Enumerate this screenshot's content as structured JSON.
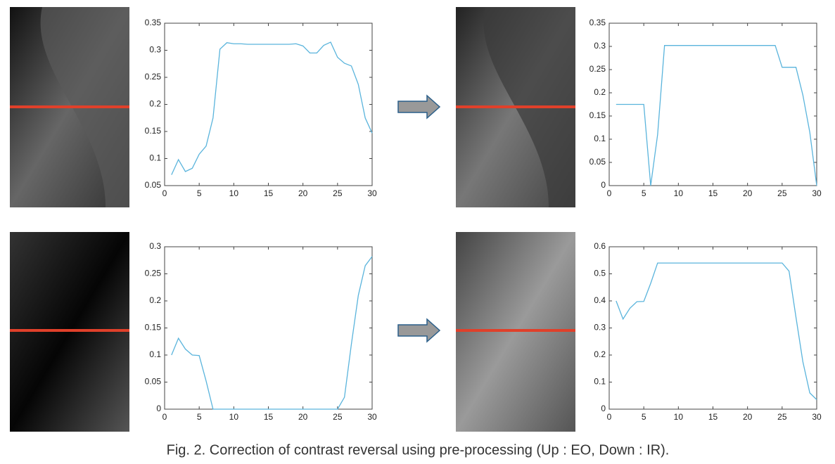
{
  "chart_data": [
    {
      "type": "line",
      "x": [
        1,
        2,
        3,
        4,
        5,
        6,
        7,
        8,
        9,
        10,
        11,
        12,
        13,
        14,
        15,
        16,
        17,
        18,
        19,
        20,
        21,
        22,
        23,
        24,
        25,
        26,
        27,
        28,
        29,
        30
      ],
      "values": [
        0.07,
        0.098,
        0.076,
        0.082,
        0.108,
        0.123,
        0.175,
        0.302,
        0.314,
        0.312,
        0.312,
        0.311,
        0.311,
        0.311,
        0.311,
        0.311,
        0.311,
        0.311,
        0.312,
        0.308,
        0.295,
        0.295,
        0.309,
        0.315,
        0.287,
        0.276,
        0.271,
        0.237,
        0.175,
        0.147
      ],
      "color": "#5ab4dc",
      "xlim": [
        0,
        30
      ],
      "xticks": [
        0,
        5,
        10,
        15,
        20,
        25,
        30
      ],
      "ylim": [
        0.05,
        0.35
      ],
      "yticks": [
        0.05,
        0.1,
        0.15,
        0.2,
        0.25,
        0.3,
        0.35
      ]
    },
    {
      "type": "line",
      "x": [
        1,
        2,
        3,
        4,
        5,
        6,
        7,
        8,
        9,
        10,
        11,
        12,
        13,
        14,
        15,
        16,
        17,
        18,
        19,
        20,
        21,
        22,
        23,
        24,
        25,
        26,
        27,
        28,
        29,
        30
      ],
      "values": [
        0.175,
        0.175,
        0.175,
        0.175,
        0.175,
        0,
        0.11,
        0.302,
        0.302,
        0.302,
        0.302,
        0.302,
        0.302,
        0.302,
        0.302,
        0.302,
        0.302,
        0.302,
        0.302,
        0.302,
        0.302,
        0.302,
        0.302,
        0.302,
        0.255,
        0.255,
        0.255,
        0.195,
        0.115,
        0
      ],
      "color": "#5ab4dc",
      "xlim": [
        0,
        30
      ],
      "xticks": [
        0,
        5,
        10,
        15,
        20,
        25,
        30
      ],
      "ylim": [
        0,
        0.35
      ],
      "yticks": [
        0,
        0.05,
        0.1,
        0.15,
        0.2,
        0.25,
        0.3,
        0.35
      ]
    },
    {
      "type": "line",
      "x": [
        1,
        2,
        3,
        4,
        5,
        6,
        7,
        8,
        9,
        10,
        11,
        12,
        13,
        14,
        15,
        16,
        17,
        18,
        19,
        20,
        21,
        22,
        23,
        24,
        25,
        26,
        27,
        28,
        29,
        30
      ],
      "values": [
        0.1,
        0.131,
        0.111,
        0.1,
        0.099,
        0.052,
        0,
        0,
        0,
        0,
        0,
        0,
        0,
        0,
        0,
        0,
        0,
        0,
        0,
        0,
        0,
        0,
        0,
        0,
        0,
        0.022,
        0.12,
        0.21,
        0.265,
        0.282
      ],
      "color": "#5ab4dc",
      "xlim": [
        0,
        30
      ],
      "xticks": [
        0,
        5,
        10,
        15,
        20,
        25,
        30
      ],
      "ylim": [
        0,
        0.3
      ],
      "yticks": [
        0,
        0.05,
        0.1,
        0.15,
        0.2,
        0.25,
        0.3
      ]
    },
    {
      "type": "line",
      "x": [
        1,
        2,
        3,
        4,
        5,
        6,
        7,
        8,
        9,
        10,
        11,
        12,
        13,
        14,
        15,
        16,
        17,
        18,
        19,
        20,
        21,
        22,
        23,
        24,
        25,
        26,
        27,
        28,
        29,
        30
      ],
      "values": [
        0.4,
        0.333,
        0.373,
        0.397,
        0.398,
        0.465,
        0.54,
        0.54,
        0.54,
        0.54,
        0.54,
        0.54,
        0.54,
        0.54,
        0.54,
        0.54,
        0.54,
        0.54,
        0.54,
        0.54,
        0.54,
        0.54,
        0.54,
        0.54,
        0.54,
        0.51,
        0.34,
        0.175,
        0.06,
        0.035
      ],
      "color": "#5ab4dc",
      "xlim": [
        0,
        30
      ],
      "xticks": [
        0,
        5,
        10,
        15,
        20,
        25,
        30
      ],
      "ylim": [
        0,
        0.6
      ],
      "yticks": [
        0,
        0.1,
        0.2,
        0.3,
        0.4,
        0.5,
        0.6
      ]
    }
  ],
  "caption": "Fig. 2.  Correction of contrast reversal using pre-processing (Up : EO, Down : IR)."
}
